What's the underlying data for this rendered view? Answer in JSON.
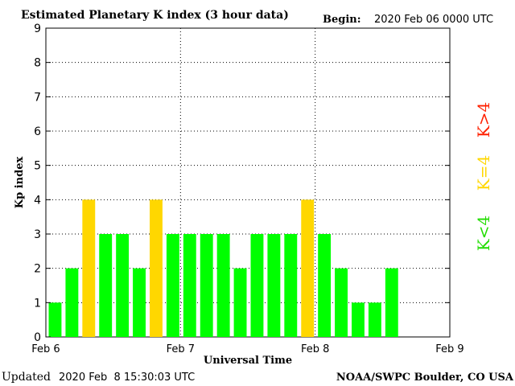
{
  "header": {
    "title": "Estimated Planetary K index (3 hour data)",
    "begin_label": "Begin:",
    "begin_value": "2020 Feb 06 0000 UTC"
  },
  "footer": {
    "updated_label": "Updated",
    "updated_value": "2020 Feb  8 15:30:03 UTC",
    "credit": "NOAA/SWPC Boulder, CO USA"
  },
  "legend": {
    "high": "K>4",
    "equal": "K=4",
    "low": "K<4"
  },
  "colors": {
    "low": "#00ff00",
    "equal": "#ffd700",
    "high": "#ff2000",
    "grid": "#000000"
  },
  "chart_data": {
    "type": "bar",
    "title": "Estimated Planetary K index (3 hour data)",
    "xlabel": "Universal Time",
    "ylabel": "Kp index",
    "ylim": [
      0,
      9
    ],
    "yticks": [
      "0",
      "1",
      "2",
      "3",
      "4",
      "5",
      "6",
      "7",
      "8",
      "9"
    ],
    "xticks": [
      "Feb 6",
      "Feb 7",
      "Feb 8",
      "Feb 9"
    ],
    "slots_total": 24,
    "values": [
      1,
      2,
      4,
      3,
      3,
      2,
      4,
      3,
      3,
      3,
      3,
      2,
      3,
      3,
      3,
      4,
      3,
      2,
      1,
      1,
      2
    ],
    "grid": "dotted"
  }
}
